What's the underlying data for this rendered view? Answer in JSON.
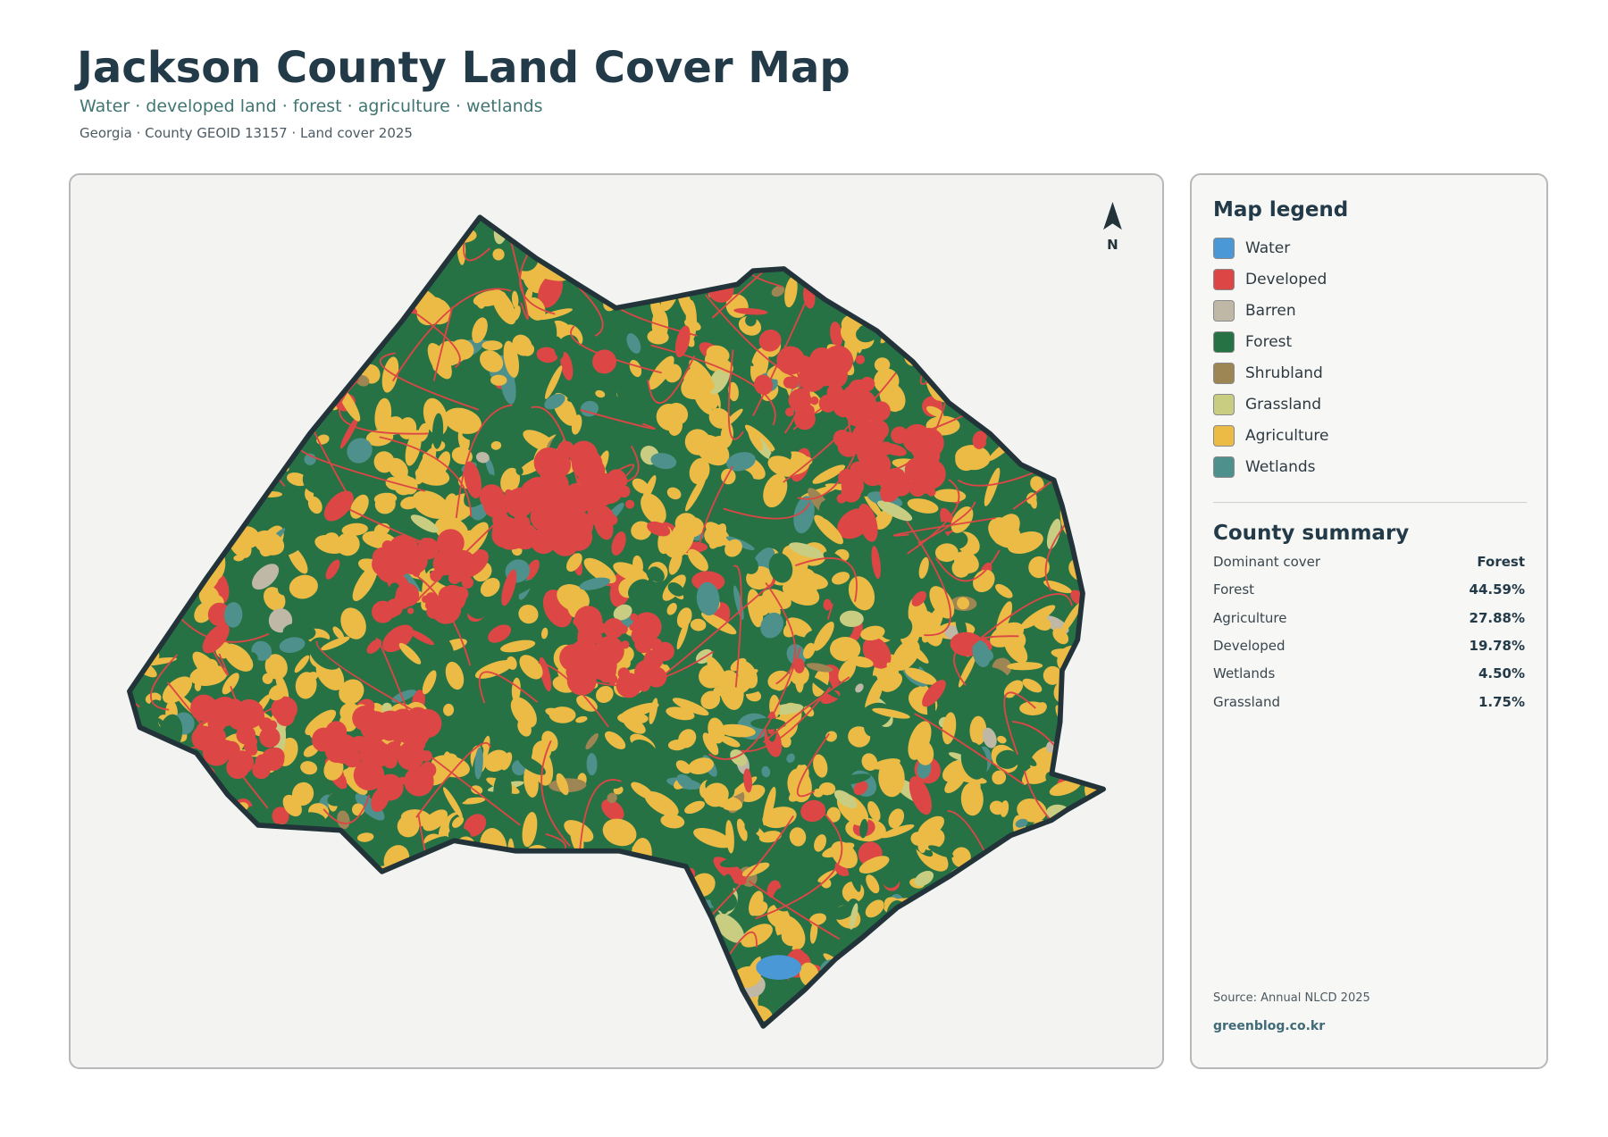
{
  "header": {
    "title": "Jackson County Land Cover Map",
    "subtitle": "Water · developed land · forest · agriculture · wetlands",
    "meta": "Georgia · County GEOID 13157 · Land cover 2025"
  },
  "map": {
    "north_label": "N"
  },
  "legend": {
    "title": "Map legend",
    "items": [
      {
        "label": "Water",
        "color": "#4a98d6"
      },
      {
        "label": "Developed",
        "color": "#dc4645"
      },
      {
        "label": "Barren",
        "color": "#bfb8a6"
      },
      {
        "label": "Forest",
        "color": "#267245"
      },
      {
        "label": "Shrubland",
        "color": "#9e8554"
      },
      {
        "label": "Grassland",
        "color": "#c8cd82"
      },
      {
        "label": "Agriculture",
        "color": "#ebbb45"
      },
      {
        "label": "Wetlands",
        "color": "#4e918c"
      }
    ]
  },
  "summary": {
    "title": "County summary",
    "rows": [
      {
        "label": "Dominant cover",
        "value": "Forest"
      },
      {
        "label": "Forest",
        "value": "44.59%"
      },
      {
        "label": "Agriculture",
        "value": "27.88%"
      },
      {
        "label": "Developed",
        "value": "19.78%"
      },
      {
        "label": "Wetlands",
        "value": "4.50%"
      },
      {
        "label": "Grassland",
        "value": "1.75%"
      }
    ]
  },
  "footer": {
    "source": "Source: Annual NLCD 2025",
    "site": "greenblog.co.kr"
  }
}
